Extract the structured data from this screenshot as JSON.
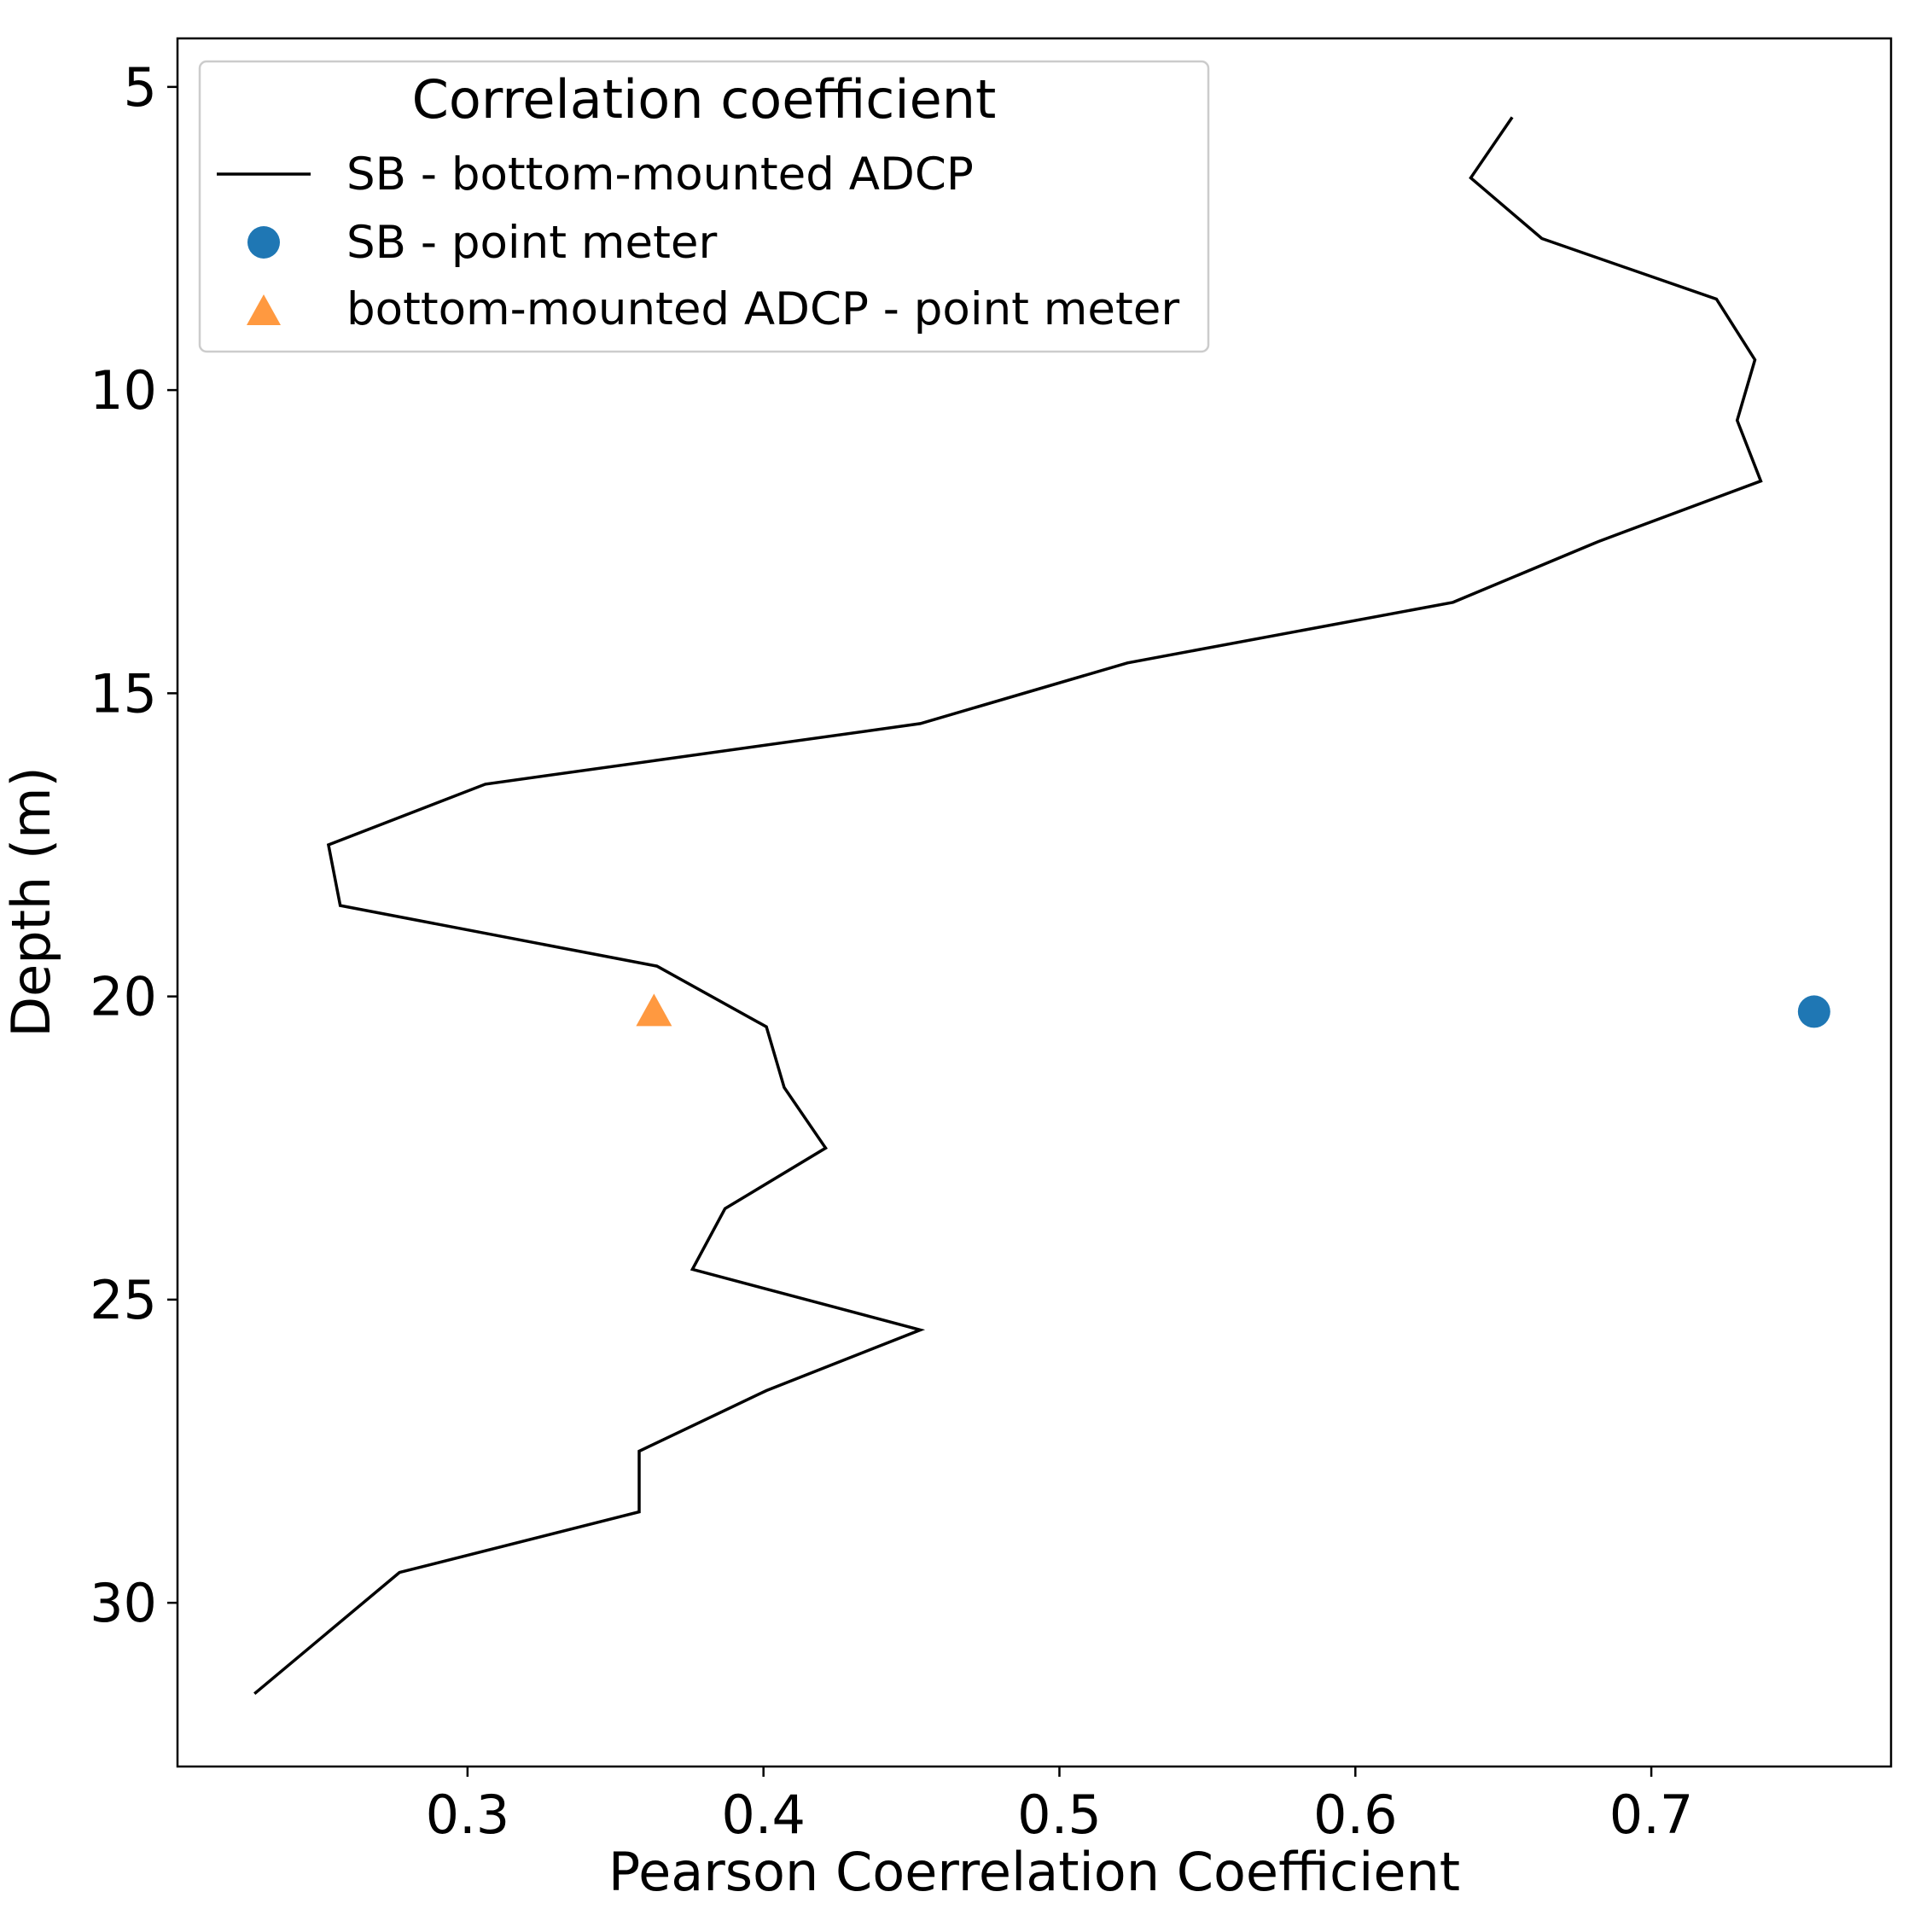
{
  "chart_data": {
    "type": "line",
    "title": "",
    "xlabel": "Pearson Coerrelation Coefficient",
    "ylabel": "Depth (m)",
    "xlim": [
      0.202,
      0.781
    ],
    "ylim": [
      32.7,
      4.2
    ],
    "y_inverted": true,
    "grid": false,
    "xticks": [
      0.3,
      0.4,
      0.5,
      0.6,
      0.7
    ],
    "xtick_labels": [
      "0.3",
      "0.4",
      "0.5",
      "0.6",
      "0.7"
    ],
    "yticks": [
      5,
      10,
      15,
      20,
      25,
      30
    ],
    "ytick_labels": [
      "5",
      "10",
      "15",
      "20",
      "25",
      "30"
    ],
    "legend": {
      "title": "Correlation coefficient",
      "position": "upper-left",
      "entries": [
        "SB - bottom-mounted ADCP",
        "SB - point meter",
        "bottom-mounted ADCP - point meter"
      ]
    },
    "series": [
      {
        "name": "SB - bottom-mounted ADCP",
        "kind": "line",
        "color": "#000000",
        "x": [
          0.653,
          0.639,
          0.663,
          0.722,
          0.735,
          0.729,
          0.737,
          0.682,
          0.633,
          0.523,
          0.453,
          0.306,
          0.253,
          0.257,
          0.364,
          0.401,
          0.407,
          0.421,
          0.387,
          0.376,
          0.453,
          0.401,
          0.358,
          0.358,
          0.277,
          0.228
        ],
        "y": [
          5.5,
          6.5,
          7.5,
          8.5,
          9.5,
          10.5,
          11.5,
          12.5,
          13.5,
          14.5,
          15.5,
          16.5,
          17.5,
          18.5,
          19.5,
          20.5,
          21.5,
          22.5,
          23.5,
          24.5,
          25.5,
          26.5,
          27.5,
          28.5,
          29.5,
          31.5
        ]
      },
      {
        "name": "SB - point meter",
        "kind": "marker-circle",
        "color": "#1f77b4",
        "x": [
          0.755
        ],
        "y": [
          20.25
        ]
      },
      {
        "name": "bottom-mounted ADCP - point meter",
        "kind": "marker-triangle",
        "color": "#ff9940",
        "x": [
          0.363
        ],
        "y": [
          20.25
        ]
      }
    ]
  }
}
